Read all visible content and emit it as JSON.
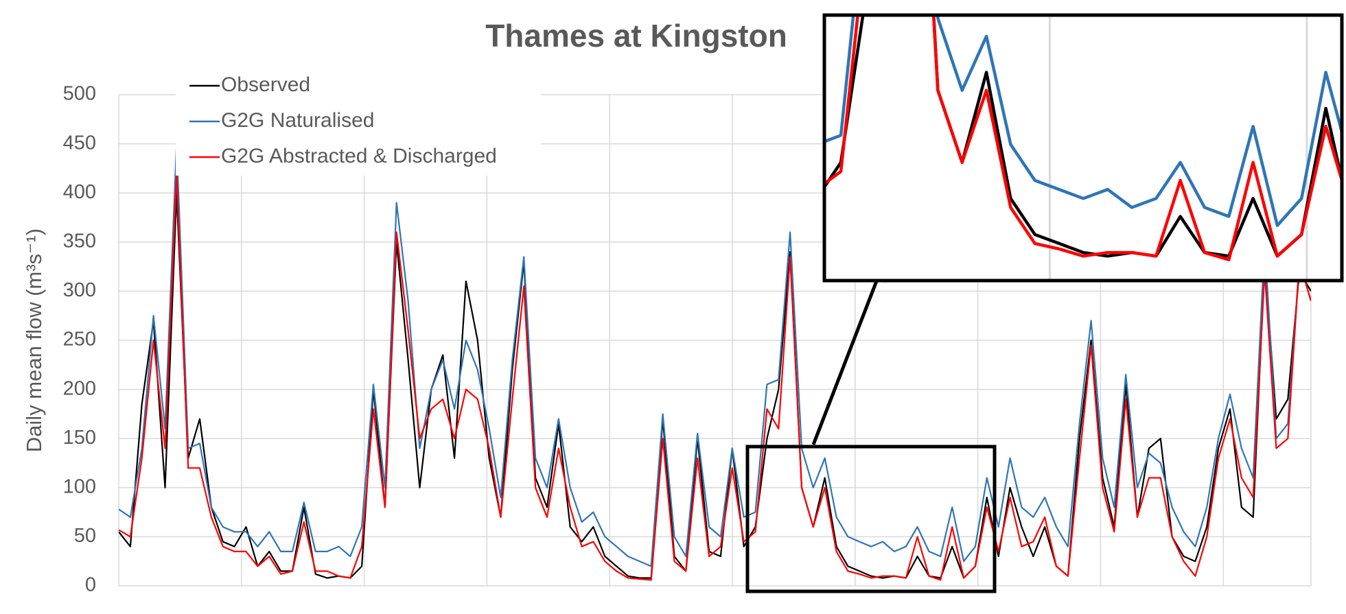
{
  "chart_data": {
    "type": "line",
    "title": "Thames at Kingston",
    "y_label": "Daily mean flow (m³s⁻¹)",
    "ylim": [
      0,
      500
    ],
    "yticks": [
      0,
      50,
      100,
      150,
      200,
      250,
      300,
      350,
      400,
      450,
      500
    ],
    "grid": true,
    "legend": "top-left",
    "series": [
      {
        "name": "Observed",
        "color": "#000000",
        "values": [
          55,
          40,
          185,
          270,
          100,
          400,
          130,
          170,
          80,
          45,
          40,
          60,
          20,
          35,
          15,
          15,
          80,
          12,
          8,
          10,
          8,
          20,
          200,
          80,
          350,
          230,
          100,
          200,
          235,
          130,
          310,
          250,
          130,
          70,
          220,
          330,
          110,
          80,
          165,
          60,
          45,
          60,
          30,
          20,
          10,
          8,
          8,
          170,
          30,
          15,
          150,
          35,
          30,
          140,
          40,
          60,
          150,
          200,
          340,
          100,
          60,
          110,
          40,
          20,
          15,
          10,
          8,
          10,
          8,
          30,
          10,
          8,
          40,
          8,
          20,
          90,
          30,
          100,
          60,
          30,
          60,
          20,
          10,
          150,
          250,
          110,
          60,
          205,
          70,
          140,
          150,
          50,
          30,
          25,
          60,
          140,
          180,
          80,
          70,
          330,
          170,
          190,
          320,
          300
        ]
      },
      {
        "name": "G2G Naturalised",
        "color": "#2e75b6",
        "values": [
          78,
          70,
          140,
          275,
          160,
          450,
          140,
          145,
          80,
          60,
          55,
          55,
          40,
          55,
          35,
          35,
          85,
          35,
          35,
          40,
          30,
          60,
          205,
          100,
          390,
          290,
          140,
          200,
          230,
          180,
          250,
          220,
          160,
          90,
          230,
          335,
          130,
          100,
          170,
          100,
          65,
          75,
          50,
          40,
          30,
          25,
          20,
          175,
          50,
          30,
          155,
          60,
          50,
          140,
          70,
          75,
          205,
          210,
          360,
          140,
          100,
          130,
          70,
          50,
          45,
          40,
          45,
          35,
          40,
          60,
          35,
          30,
          80,
          25,
          40,
          110,
          60,
          130,
          80,
          70,
          90,
          60,
          40,
          165,
          270,
          130,
          80,
          215,
          100,
          135,
          125,
          80,
          55,
          40,
          80,
          150,
          195,
          140,
          110,
          350,
          150,
          165,
          330,
          290
        ]
      },
      {
        "name": "G2G Abstracted & Discharged",
        "color": "#ff0000",
        "values": [
          57,
          50,
          130,
          250,
          140,
          420,
          120,
          120,
          70,
          40,
          35,
          35,
          20,
          30,
          12,
          15,
          65,
          15,
          15,
          10,
          8,
          40,
          180,
          80,
          360,
          260,
          150,
          180,
          190,
          150,
          200,
          190,
          140,
          70,
          190,
          305,
          100,
          70,
          140,
          80,
          40,
          45,
          25,
          15,
          8,
          7,
          6,
          150,
          25,
          15,
          130,
          30,
          40,
          120,
          45,
          55,
          180,
          160,
          335,
          100,
          60,
          100,
          35,
          15,
          12,
          8,
          10,
          10,
          8,
          50,
          10,
          6,
          60,
          8,
          20,
          80,
          35,
          90,
          40,
          45,
          70,
          20,
          10,
          130,
          245,
          100,
          55,
          190,
          70,
          110,
          110,
          50,
          25,
          10,
          50,
          130,
          170,
          110,
          90,
          320,
          140,
          150,
          330,
          290
        ]
      }
    ]
  }
}
